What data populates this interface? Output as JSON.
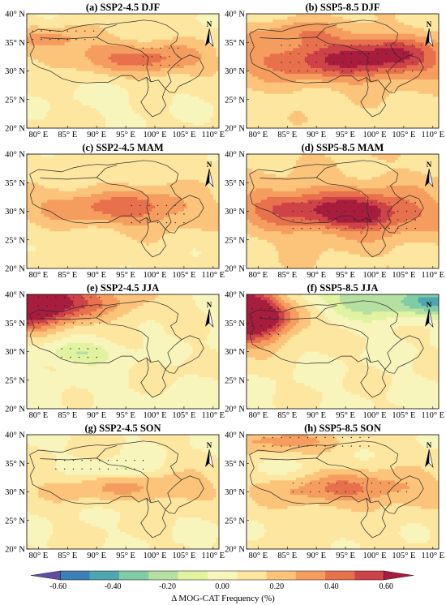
{
  "figure": {
    "panels": [
      {
        "title": "(a) SSP2-4.5 DJF"
      },
      {
        "title": "(b) SSP5-8.5 DJF"
      },
      {
        "title": "(c) SSP2-4.5 MAM"
      },
      {
        "title": "(d) SSP5-8.5 MAM"
      },
      {
        "title": "(e) SSP2-4.5 JJA"
      },
      {
        "title": "(f) SSP5-8.5 JJA"
      },
      {
        "title": "(g) SSP2-4.5 SON"
      },
      {
        "title": "(h) SSP5-8.5 SON"
      }
    ],
    "north_arrow_label": "N",
    "colorbar": {
      "label": "Δ MOG-CAT Frequency (%)",
      "ticks": [
        "-0.60",
        "-0.40",
        "-0.20",
        "0.00",
        "0.20",
        "0.40",
        "0.60"
      ],
      "colors": [
        "#5e4fa2",
        "#3f7fb7",
        "#4ea6b0",
        "#7fcca6",
        "#b5e0a2",
        "#e1f2a0",
        "#f8f5bc",
        "#fde6a0",
        "#fbc47a",
        "#f59d5f",
        "#e8714d",
        "#cf4348",
        "#a81d3e"
      ]
    }
  },
  "chart_data": {
    "type": "heatmap",
    "xlim": [
      78,
      111
    ],
    "ylim": [
      20,
      40
    ],
    "xticks": [
      80,
      85,
      90,
      95,
      100,
      105,
      110
    ],
    "xtick_labels": [
      "80° E",
      "85° E",
      "90° E",
      "95° E",
      "100° E",
      "105° E",
      "110° E"
    ],
    "yticks": [
      20,
      25,
      30,
      35,
      40
    ],
    "ytick_labels": [
      "20° N",
      "25° N",
      "30° N",
      "35° N",
      "40° N"
    ],
    "value_range": [
      -0.7,
      0.7
    ],
    "panels": [
      {
        "title": "(a) SSP2-4.5 DJF",
        "background": 0.08,
        "blobs": [
          {
            "lon": 100,
            "lat": 32,
            "sx": 7,
            "sy": 2.2,
            "v": 0.32
          },
          {
            "lon": 87,
            "lat": 33,
            "sx": 6,
            "sy": 2,
            "v": 0.15
          },
          {
            "lon": 82,
            "lat": 36,
            "sx": 5,
            "sy": 1.5,
            "v": 0.18
          },
          {
            "lon": 95,
            "lat": 25,
            "sx": 8,
            "sy": 3,
            "v": -0.05
          }
        ],
        "stipple": [
          [
            98,
            104,
            31,
            34
          ],
          [
            79,
            90,
            35.5,
            38
          ]
        ]
      },
      {
        "title": "(b) SSP5-8.5 DJF",
        "background": 0.12,
        "blobs": [
          {
            "lon": 95,
            "lat": 32,
            "sx": 13,
            "sy": 2.8,
            "v": 0.45
          },
          {
            "lon": 103,
            "lat": 33,
            "sx": 5,
            "sy": 2,
            "v": 0.18
          },
          {
            "lon": 87,
            "lat": 37,
            "sx": 7,
            "sy": 1.5,
            "v": 0.15
          }
        ],
        "stipple": [
          [
            84,
            108,
            30,
            35
          ]
        ]
      },
      {
        "title": "(c) SSP2-4.5 MAM",
        "background": 0.1,
        "blobs": [
          {
            "lon": 97,
            "lat": 30.5,
            "sx": 8,
            "sy": 2.5,
            "v": 0.32
          },
          {
            "lon": 84,
            "lat": 31,
            "sx": 5,
            "sy": 2,
            "v": 0.15
          }
        ],
        "stipple": [
          [
            96,
            105,
            28,
            32
          ]
        ]
      },
      {
        "title": "(d) SSP5-8.5 MAM",
        "background": 0.14,
        "blobs": [
          {
            "lon": 96,
            "lat": 30,
            "sx": 11,
            "sy": 3,
            "v": 0.4
          },
          {
            "lon": 97,
            "lat": 29.5,
            "sx": 4,
            "sy": 1.5,
            "v": 0.25
          },
          {
            "lon": 84,
            "lat": 31,
            "sx": 5,
            "sy": 2,
            "v": 0.15
          }
        ],
        "stipple": [
          [
            86,
            108,
            27,
            32.5
          ]
        ]
      },
      {
        "title": "(e) SSP2-4.5 JJA",
        "background": 0.03,
        "blobs": [
          {
            "lon": 78,
            "lat": 39,
            "sx": 6,
            "sy": 3.5,
            "v": 0.75
          },
          {
            "lon": 88,
            "lat": 38.5,
            "sx": 10,
            "sy": 2.5,
            "v": 0.25
          },
          {
            "lon": 87,
            "lat": 29.8,
            "sx": 4.5,
            "sy": 1.3,
            "v": -0.2
          },
          {
            "lon": 103,
            "lat": 28,
            "sx": 5,
            "sy": 3,
            "v": 0.05
          }
        ],
        "stipple": [
          [
            80,
            91,
            35,
            39.5
          ],
          [
            84,
            90,
            29,
            31
          ]
        ]
      },
      {
        "title": "(f) SSP5-8.5 JJA",
        "background": 0.05,
        "blobs": [
          {
            "lon": 78,
            "lat": 37,
            "sx": 4,
            "sy": 4,
            "v": 0.75
          },
          {
            "lon": 83,
            "lat": 36,
            "sx": 5,
            "sy": 2.5,
            "v": 0.3
          },
          {
            "lon": 102,
            "lat": 39,
            "sx": 11,
            "sy": 2.2,
            "v": -0.3
          },
          {
            "lon": 110,
            "lat": 38.5,
            "sx": 3,
            "sy": 1.5,
            "v": -0.2
          }
        ],
        "stipple": [
          [
            79,
            84,
            33,
            38
          ]
        ]
      },
      {
        "title": "(g) SSP2-4.5 SON",
        "background": 0.06,
        "blobs": [
          {
            "lon": 93,
            "lat": 30.5,
            "sx": 10,
            "sy": 1.8,
            "v": 0.2
          },
          {
            "lon": 94,
            "lat": 34,
            "sx": 4,
            "sy": 1,
            "v": -0.15
          },
          {
            "lon": 105,
            "lat": 31,
            "sx": 4,
            "sy": 2,
            "v": 0.12
          }
        ],
        "stipple": [
          [
            83,
            98,
            34,
            36
          ]
        ]
      },
      {
        "title": "(h) SSP5-8.5 SON",
        "background": 0.08,
        "blobs": [
          {
            "lon": 96,
            "lat": 30.5,
            "sx": 11,
            "sy": 2.2,
            "v": 0.3
          },
          {
            "lon": 83,
            "lat": 39,
            "sx": 7,
            "sy": 1.5,
            "v": 0.25
          },
          {
            "lon": 82,
            "lat": 34,
            "sx": 4,
            "sy": 1.5,
            "v": -0.1
          }
        ],
        "stipple": [
          [
            81,
            100,
            38,
            40
          ],
          [
            86,
            106,
            30,
            32
          ]
        ]
      }
    ]
  }
}
